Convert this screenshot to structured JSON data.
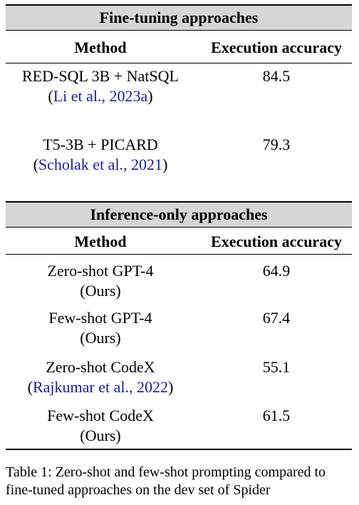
{
  "sections": [
    {
      "title": "Fine-tuning approaches",
      "col_method": "Method",
      "col_accuracy": "Execution accuracy",
      "rows": [
        {
          "method": "RED-SQL 3B + NatSQL",
          "cite": "Li et al., 2023a",
          "cite_open": "(",
          "cite_close": ")",
          "accuracy": "84.5"
        },
        {
          "method": "T5-3B + PICARD",
          "cite": "Scholak et al., 2021",
          "cite_open": "(",
          "cite_close": ")",
          "accuracy": "79.3"
        }
      ]
    },
    {
      "title": "Inference-only approaches",
      "col_method": "Method",
      "col_accuracy": "Execution accuracy",
      "rows": [
        {
          "method": "Zero-shot GPT-4",
          "note": "(Ours)",
          "accuracy": "64.9"
        },
        {
          "method": "Few-shot GPT-4",
          "note": "(Ours)",
          "accuracy": "67.4"
        },
        {
          "method": "Zero-shot CodeX",
          "cite": "Rajkumar et al., 2022",
          "cite_open": "(",
          "cite_close": ")",
          "accuracy": "55.1"
        },
        {
          "method": "Few-shot CodeX",
          "note": "(Ours)",
          "accuracy": "61.5"
        }
      ]
    }
  ],
  "caption": {
    "label": "Table 1:",
    "text": "Zero-shot and few-shot prompting compared to fine-tuned approaches on the dev set of Spider"
  }
}
